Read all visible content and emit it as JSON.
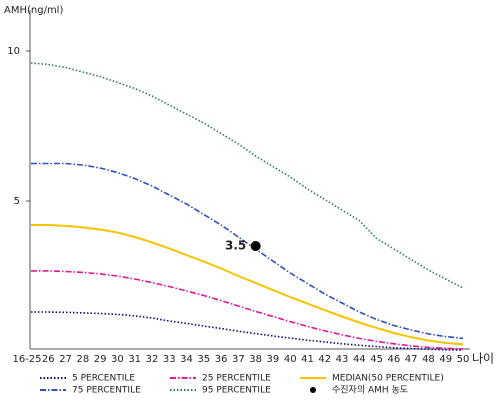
{
  "chart_data": {
    "type": "line",
    "y_label": "AMH(ng/ml)",
    "x_label": "나이",
    "categories": [
      "16-25",
      "26",
      "27",
      "28",
      "29",
      "30",
      "31",
      "32",
      "33",
      "34",
      "35",
      "36",
      "37",
      "38",
      "39",
      "40",
      "41",
      "42",
      "43",
      "44",
      "45",
      "46",
      "47",
      "48",
      "49",
      "50"
    ],
    "ylim": [
      0,
      11.3
    ],
    "yticks": [
      5,
      10
    ],
    "series": [
      {
        "name": "5 PERCENTILE",
        "color": "#0a0a80",
        "style": "dotted",
        "values": [
          1.3,
          1.3,
          1.29,
          1.27,
          1.25,
          1.22,
          1.17,
          1.1,
          1.0,
          0.92,
          0.83,
          0.75,
          0.66,
          0.58,
          0.5,
          0.43,
          0.36,
          0.3,
          0.24,
          0.19,
          0.15,
          0.11,
          0.08,
          0.06,
          0.04,
          0.03
        ]
      },
      {
        "name": "25 PERCENTILE",
        "color": "#e0189a",
        "style": "dashdot",
        "values": [
          2.67,
          2.67,
          2.65,
          2.62,
          2.57,
          2.5,
          2.4,
          2.28,
          2.15,
          2.0,
          1.85,
          1.68,
          1.5,
          1.32,
          1.15,
          0.98,
          0.82,
          0.67,
          0.54,
          0.42,
          0.32,
          0.24,
          0.17,
          0.12,
          0.09,
          0.07
        ]
      },
      {
        "name": "MEDIAN(50 PERCENTILE)",
        "color": "#f5c400",
        "style": "solid",
        "values": [
          4.2,
          4.2,
          4.17,
          4.12,
          4.05,
          3.95,
          3.8,
          3.62,
          3.42,
          3.2,
          2.98,
          2.75,
          2.5,
          2.27,
          2.03,
          1.8,
          1.58,
          1.36,
          1.15,
          0.95,
          0.77,
          0.6,
          0.46,
          0.35,
          0.27,
          0.22
        ]
      },
      {
        "name": "75 PERCENTILE",
        "color": "#3050c0",
        "style": "dashdot",
        "values": [
          6.25,
          6.25,
          6.25,
          6.2,
          6.1,
          5.95,
          5.75,
          5.5,
          5.2,
          4.9,
          4.55,
          4.2,
          3.8,
          3.4,
          3.0,
          2.6,
          2.25,
          1.9,
          1.6,
          1.3,
          1.05,
          0.85,
          0.7,
          0.57,
          0.48,
          0.42
        ]
      },
      {
        "name": "95 PERCENTILE",
        "color": "#2e7d4a",
        "style": "dotted",
        "values": [
          9.6,
          9.55,
          9.45,
          9.3,
          9.15,
          8.95,
          8.75,
          8.5,
          8.2,
          7.9,
          7.6,
          7.25,
          6.9,
          6.5,
          6.15,
          5.8,
          5.4,
          5.05,
          4.7,
          4.35,
          3.75,
          3.4,
          3.05,
          2.7,
          2.4,
          2.1
        ]
      }
    ],
    "point": {
      "name": "수진자의 AMH 농도",
      "category_index": 13,
      "value": 3.5,
      "color": "#000000"
    }
  }
}
